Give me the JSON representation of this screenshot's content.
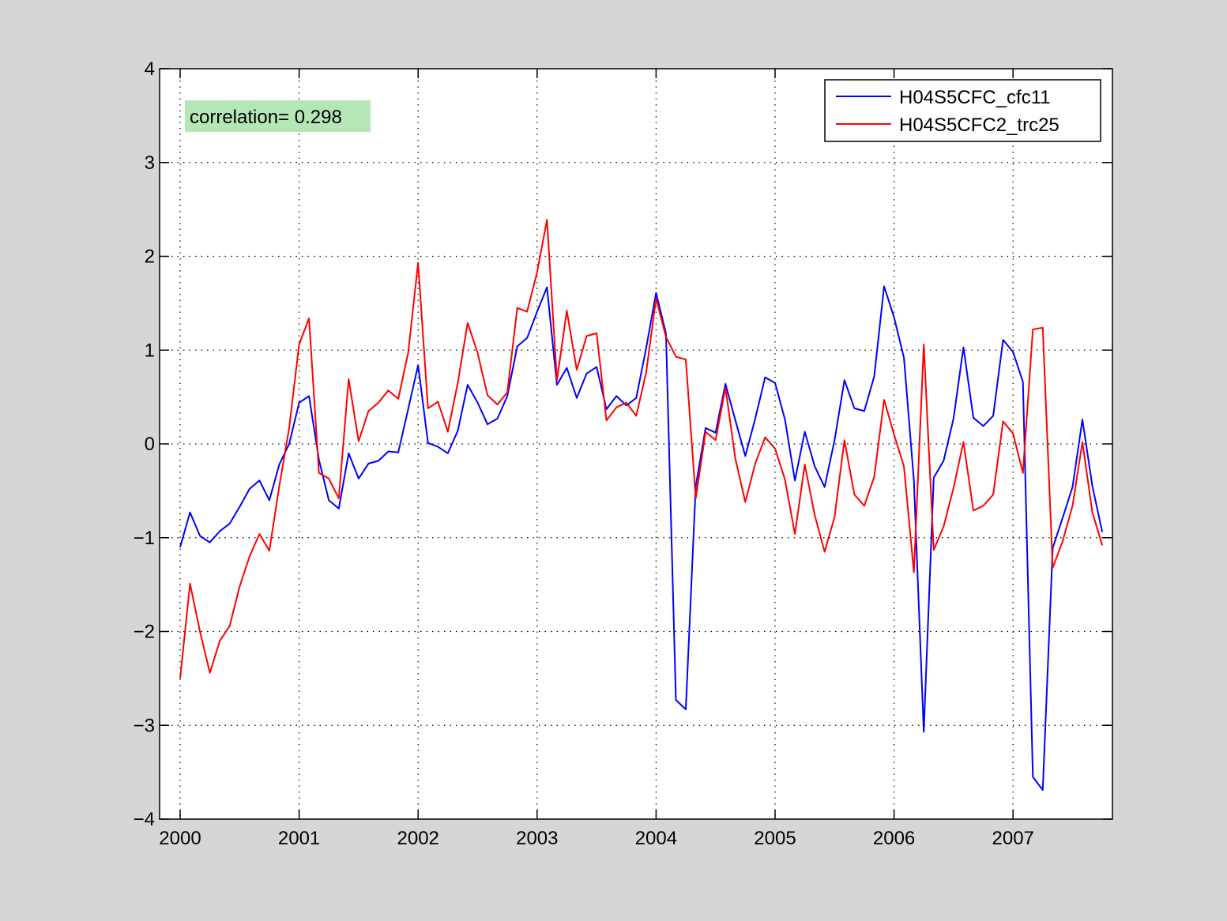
{
  "chart_data": {
    "type": "line",
    "title": "",
    "xlabel": "",
    "ylabel": "",
    "xlim": [
      2000,
      2007.83
    ],
    "ylim": [
      -4,
      4
    ],
    "grid": true,
    "legend_position": "top-right",
    "x_ticks": [
      2000,
      2001,
      2002,
      2003,
      2004,
      2005,
      2006,
      2007
    ],
    "x_tick_labels": [
      "2000",
      "2001",
      "2002",
      "2003",
      "2004",
      "2005",
      "2006",
      "2007"
    ],
    "y_ticks": [
      -4,
      -3,
      -2,
      -1,
      0,
      1,
      2,
      3,
      4
    ],
    "y_tick_labels": [
      "−4",
      "−3",
      "−2",
      "−1",
      "0",
      "1",
      "2",
      "3",
      "4"
    ],
    "x_start": 2000,
    "x_step": 0.08333,
    "annotation": {
      "text": "correlation= 0.298",
      "background": "#b5e6b5"
    },
    "series": [
      {
        "name": "H04S5CFC_cfc11",
        "color": "#0000ff",
        "values": [
          -1.1,
          -0.73,
          -0.98,
          -1.05,
          -0.93,
          -0.85,
          -0.67,
          -0.48,
          -0.39,
          -0.6,
          -0.22,
          0.0,
          0.44,
          0.51,
          -0.17,
          -0.6,
          -0.69,
          -0.1,
          -0.37,
          -0.21,
          -0.18,
          -0.08,
          -0.09,
          0.37,
          0.84,
          0.01,
          -0.03,
          -0.1,
          0.14,
          0.63,
          0.44,
          0.21,
          0.27,
          0.51,
          1.04,
          1.13,
          1.41,
          1.67,
          0.63,
          0.81,
          0.49,
          0.75,
          0.82,
          0.37,
          0.51,
          0.41,
          0.49,
          1.02,
          1.61,
          1.18,
          -2.73,
          -2.83,
          -0.45,
          0.17,
          0.12,
          0.64,
          0.25,
          -0.13,
          0.27,
          0.71,
          0.65,
          0.26,
          -0.39,
          0.13,
          -0.24,
          -0.46,
          0.04,
          0.68,
          0.38,
          0.35,
          0.72,
          1.68,
          1.35,
          0.92,
          -0.39,
          -3.07,
          -0.36,
          -0.18,
          0.27,
          1.03,
          0.28,
          0.19,
          0.3,
          1.11,
          0.98,
          0.66,
          -3.55,
          -3.69,
          -1.11,
          -0.79,
          -0.46,
          0.26,
          -0.45,
          -0.94
        ]
      },
      {
        "name": "H04S5CFC2_trc25",
        "color": "#ff0000",
        "values": [
          -2.5,
          -1.49,
          -2.0,
          -2.44,
          -2.1,
          -1.94,
          -1.52,
          -1.2,
          -0.96,
          -1.14,
          -0.45,
          0.17,
          1.06,
          1.34,
          -0.31,
          -0.37,
          -0.58,
          0.69,
          0.03,
          0.35,
          0.44,
          0.57,
          0.48,
          0.97,
          1.93,
          0.38,
          0.45,
          0.13,
          0.65,
          1.29,
          0.97,
          0.52,
          0.42,
          0.55,
          1.45,
          1.41,
          1.83,
          2.39,
          0.68,
          1.42,
          0.79,
          1.15,
          1.18,
          0.25,
          0.39,
          0.44,
          0.3,
          0.76,
          1.55,
          1.14,
          0.93,
          0.9,
          -0.58,
          0.13,
          0.04,
          0.6,
          -0.16,
          -0.62,
          -0.21,
          0.07,
          -0.05,
          -0.38,
          -0.96,
          -0.22,
          -0.76,
          -1.15,
          -0.78,
          0.04,
          -0.54,
          -0.66,
          -0.35,
          0.47,
          0.1,
          -0.24,
          -1.37,
          1.06,
          -1.13,
          -0.88,
          -0.47,
          0.02,
          -0.71,
          -0.66,
          -0.54,
          0.24,
          0.11,
          -0.31,
          1.22,
          1.24,
          -1.32,
          -1.04,
          -0.66,
          0.02,
          -0.73,
          -1.08
        ]
      }
    ]
  }
}
